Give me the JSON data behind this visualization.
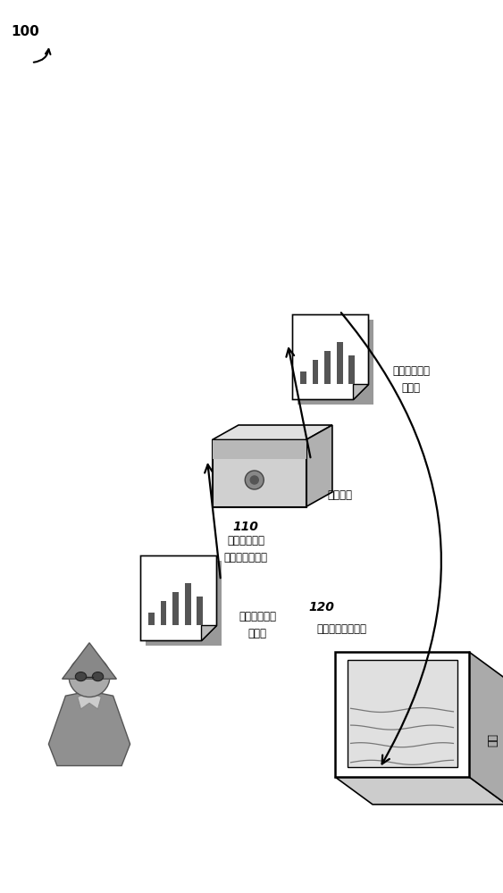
{
  "bg_color": "#ffffff",
  "label_100": "100",
  "label_110": "110",
  "label_110_text": "接收具有感意\n有效载荷的文件",
  "label_120": "120",
  "label_120_text": "在沙筱中打开文件",
  "label_sandbox": "沙筱",
  "label_file_malicious1": "具有恶意对象\n的文件",
  "label_file_malicious2": "具有恶意对象\n的文件",
  "label_security_platform": "安全平台"
}
